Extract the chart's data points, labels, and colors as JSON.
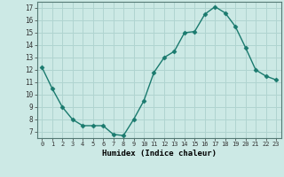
{
  "x": [
    0,
    1,
    2,
    3,
    4,
    5,
    6,
    7,
    8,
    9,
    10,
    11,
    12,
    13,
    14,
    15,
    16,
    17,
    18,
    19,
    20,
    21,
    22,
    23
  ],
  "y": [
    12.2,
    10.5,
    9.0,
    8.0,
    7.5,
    7.5,
    7.5,
    6.8,
    6.7,
    8.0,
    9.5,
    11.8,
    13.0,
    13.5,
    15.0,
    15.1,
    16.5,
    17.1,
    16.6,
    15.5,
    13.8,
    12.0,
    11.5,
    11.2
  ],
  "xlabel": "Humidex (Indice chaleur)",
  "xlim": [
    -0.5,
    23.5
  ],
  "ylim": [
    6.5,
    17.5
  ],
  "yticks": [
    7,
    8,
    9,
    10,
    11,
    12,
    13,
    14,
    15,
    16,
    17
  ],
  "xtick_labels": [
    "0",
    "1",
    "2",
    "3",
    "4",
    "5",
    "6",
    "7",
    "8",
    "9",
    "10",
    "11",
    "12",
    "13",
    "14",
    "15",
    "16",
    "17",
    "18",
    "19",
    "20",
    "21",
    "22",
    "23"
  ],
  "line_color": "#1a7a6e",
  "marker_color": "#1a7a6e",
  "bg_color": "#cce9e5",
  "grid_color": "#b0d4d0",
  "axes_bg": "#cce9e5"
}
